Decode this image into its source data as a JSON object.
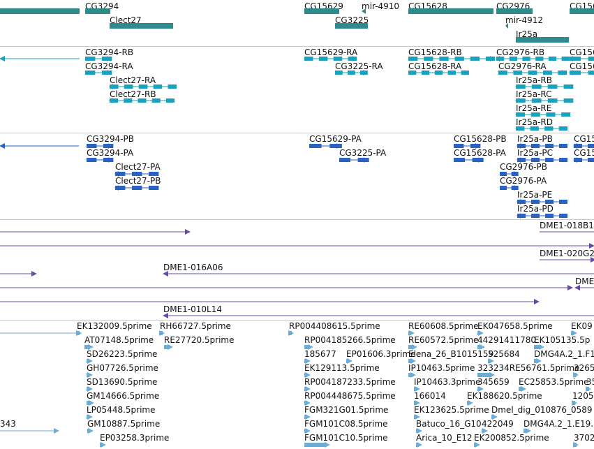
{
  "colors": {
    "gene": "#2e8b8b",
    "transcript": "#1aa0c0",
    "protein": "#2a62c4",
    "bac": "#6a4aa8",
    "est": "#6aaed8",
    "divider": "#c8c8c8"
  },
  "tracks": {
    "gene": {
      "features": [
        {
          "label": "",
          "glyph": "bar"
        },
        {
          "label": "CG3294",
          "glyph": "bar"
        },
        {
          "label": "Clect27",
          "glyph": "bar"
        },
        {
          "label": "CG15629",
          "glyph": "bar"
        },
        {
          "label": "CG3225",
          "glyph": "bar"
        },
        {
          "label": "mir-4910",
          "glyph": "tiny"
        },
        {
          "label": "CG15628",
          "glyph": "bar"
        },
        {
          "label": "CG2976",
          "glyph": "bar"
        },
        {
          "label": "mir-4912",
          "glyph": "tiny"
        },
        {
          "label": "Ir25a",
          "glyph": "bar"
        },
        {
          "label": "CG156",
          "glyph": "bar"
        }
      ]
    },
    "transcript": {
      "features": [
        {
          "label": "",
          "glyph": "line"
        },
        {
          "label": "CG3294-RB",
          "glyph": "exons"
        },
        {
          "label": "CG3294-RA",
          "glyph": "exons"
        },
        {
          "label": "Clect27-RA",
          "glyph": "exons"
        },
        {
          "label": "Clect27-RB",
          "glyph": "exons"
        },
        {
          "label": "CG15629-RA",
          "glyph": "exons"
        },
        {
          "label": "CG3225-RA",
          "glyph": "exons"
        },
        {
          "label": "CG15628-RB",
          "glyph": "exons"
        },
        {
          "label": "CG15628-RA",
          "glyph": "exons"
        },
        {
          "label": "CG2976-RB",
          "glyph": "exons"
        },
        {
          "label": "CG2976-RA",
          "glyph": "exons"
        },
        {
          "label": "Ir25a-RB",
          "glyph": "exons"
        },
        {
          "label": "Ir25a-RC",
          "glyph": "exons"
        },
        {
          "label": "Ir25a-RE",
          "glyph": "exons"
        },
        {
          "label": "Ir25a-RD",
          "glyph": "exons"
        },
        {
          "label": "CG156",
          "glyph": "exons"
        },
        {
          "label": "CG156",
          "glyph": "exons"
        }
      ]
    },
    "protein": {
      "features": [
        {
          "label": "",
          "glyph": "line"
        },
        {
          "label": "CG3294-PB",
          "glyph": "exons"
        },
        {
          "label": "CG3294-PA",
          "glyph": "exons"
        },
        {
          "label": "Clect27-PA",
          "glyph": "exons"
        },
        {
          "label": "Clect27-PB",
          "glyph": "exons"
        },
        {
          "label": "CG15629-PA",
          "glyph": "exons"
        },
        {
          "label": "CG3225-PA",
          "glyph": "exons"
        },
        {
          "label": "CG15628-PB",
          "glyph": "exons"
        },
        {
          "label": "CG15628-PA",
          "glyph": "exons"
        },
        {
          "label": "Ir25a-PB",
          "glyph": "exons"
        },
        {
          "label": "Ir25a-PC",
          "glyph": "exons"
        },
        {
          "label": "CG2976-PB",
          "glyph": "exons"
        },
        {
          "label": "CG2976-PA",
          "glyph": "exons"
        },
        {
          "label": "Ir25a-PE",
          "glyph": "exons"
        },
        {
          "label": "Ir25a-PD",
          "glyph": "exons"
        },
        {
          "label": "CG15",
          "glyph": "exons"
        },
        {
          "label": "CG15",
          "glyph": "exons"
        }
      ]
    },
    "bac": {
      "features": [
        {
          "label": "",
          "glyph": "line"
        },
        {
          "label": "DME1-018B1",
          "glyph": "line"
        },
        {
          "label": "",
          "glyph": "line"
        },
        {
          "label": "DME1-020G2",
          "glyph": "line"
        },
        {
          "label": "",
          "glyph": "line"
        },
        {
          "label": "DME1-016A06",
          "glyph": "line"
        },
        {
          "label": "",
          "glyph": "line"
        },
        {
          "label": "DME",
          "glyph": "line"
        },
        {
          "label": "",
          "glyph": "line"
        },
        {
          "label": "DME1-010L14",
          "glyph": "line"
        }
      ]
    },
    "est": {
      "features": [
        {
          "label": "",
          "glyph": "line"
        },
        {
          "label": "EK132009.5prime",
          "glyph": "line"
        },
        {
          "label": "RH66727.5prime",
          "glyph": "line"
        },
        {
          "label": "RP004408615.5prime",
          "glyph": "line"
        },
        {
          "label": "RE60608.5prime",
          "glyph": "line"
        },
        {
          "label": "EK047658.5prime",
          "glyph": "line"
        },
        {
          "label": "EK09",
          "glyph": "line"
        },
        {
          "label": "AT07148.5prime",
          "glyph": "line"
        },
        {
          "label": "RE27720.5prime",
          "glyph": "line"
        },
        {
          "label": "RP004185266.5prime",
          "glyph": "line"
        },
        {
          "label": "RE60572.5prime",
          "glyph": "line"
        },
        {
          "label": "44291411780",
          "glyph": "line"
        },
        {
          "label": "EK105135.5p",
          "glyph": "line"
        },
        {
          "label": "SD26223.5prime",
          "glyph": "line"
        },
        {
          "label": "185677",
          "glyph": "line"
        },
        {
          "label": "EP01606.3prime",
          "glyph": "line"
        },
        {
          "label": "Elena_26_B1015159",
          "glyph": "line"
        },
        {
          "label": "525684",
          "glyph": "line"
        },
        {
          "label": "DMG4A.2_1.F1",
          "glyph": "line"
        },
        {
          "label": "GH07726.5prime",
          "glyph": "line"
        },
        {
          "label": "EK129113.5prime",
          "glyph": "line"
        },
        {
          "label": "IP10463.5prime",
          "glyph": "line"
        },
        {
          "label": "323234RE56761.5prime",
          "glyph": "line"
        },
        {
          "label": "3265",
          "glyph": "line"
        },
        {
          "label": "SD13690.5prime",
          "glyph": "line"
        },
        {
          "label": "RP004187233.5prime",
          "glyph": "line"
        },
        {
          "label": "IP10463.3prime",
          "glyph": "line"
        },
        {
          "label": "345659",
          "glyph": "line"
        },
        {
          "label": "EC25853.5prime",
          "glyph": "line"
        },
        {
          "label": "35",
          "glyph": "line"
        },
        {
          "label": "GM14666.5prime",
          "glyph": "line"
        },
        {
          "label": "RP004448675.5prime",
          "glyph": "line"
        },
        {
          "label": "166014",
          "glyph": "line"
        },
        {
          "label": "EK188620.5prime",
          "glyph": "line"
        },
        {
          "label": "1205",
          "glyph": "line"
        },
        {
          "label": "LP05448.5prime",
          "glyph": "line"
        },
        {
          "label": "FGM321G01.5prime",
          "glyph": "line"
        },
        {
          "label": "EK123625.5prime",
          "glyph": "line"
        },
        {
          "label": "Dmel_dig_010876_0589",
          "glyph": "line"
        },
        {
          "label": "343",
          "glyph": "line"
        },
        {
          "label": "GM10887.5prime",
          "glyph": "line"
        },
        {
          "label": "FGM101C08.5prime",
          "glyph": "line"
        },
        {
          "label": "Batuco_16_G10",
          "glyph": "line"
        },
        {
          "label": "422049",
          "glyph": "line"
        },
        {
          "label": "DMG4A.2_1.E19.",
          "glyph": "line"
        },
        {
          "label": "EP03258.3prime",
          "glyph": "line"
        },
        {
          "label": "FGM101C10.5prime",
          "glyph": "line"
        },
        {
          "label": "Arica_10_E12",
          "glyph": "line"
        },
        {
          "label": "EK200852.5prime",
          "glyph": "line"
        },
        {
          "label": "3702",
          "glyph": "line"
        }
      ]
    }
  }
}
